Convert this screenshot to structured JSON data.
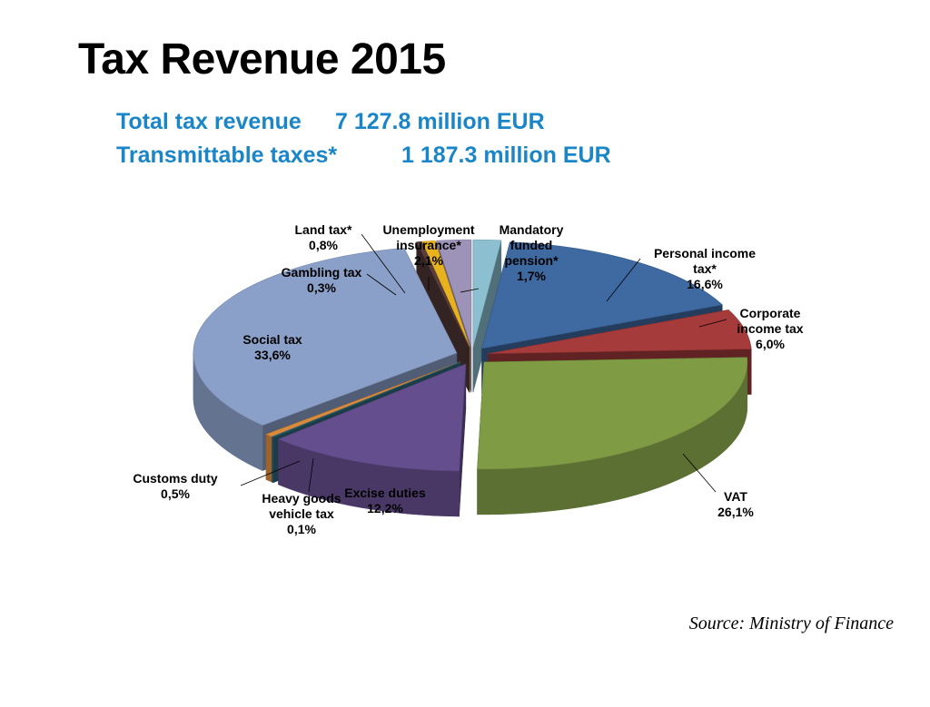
{
  "title": "Tax Revenue 2015",
  "subtitle": {
    "total_label": "Total tax revenue",
    "total_value": "7 127.8 million EUR",
    "transmittable_label": "Transmittable taxes*",
    "transmittable_value": "1 187.3 million EUR"
  },
  "source": "Source: Ministry of Finance",
  "chart_data": {
    "type": "pie",
    "title": "",
    "slices": [
      {
        "name": "Mandatory funded pension*",
        "value": 1.7,
        "label_lines": [
          "Mandatory",
          "funded",
          "pension*",
          "1,7%"
        ],
        "color": "#8cc0d0"
      },
      {
        "name": "Personal income tax*",
        "value": 16.6,
        "label_lines": [
          "Personal income",
          "tax*",
          "16,6%"
        ],
        "color": "#3e6aa1"
      },
      {
        "name": "Corporate income tax",
        "value": 6.0,
        "label_lines": [
          "Corporate",
          "income tax",
          "6,0%"
        ],
        "color": "#a63b3b"
      },
      {
        "name": "VAT",
        "value": 26.1,
        "label_lines": [
          "VAT",
          "26,1%"
        ],
        "color": "#7f9c45"
      },
      {
        "name": "Excise duties",
        "value": 12.2,
        "label_lines": [
          "Excise duties",
          "12,2%"
        ],
        "color": "#654e8d"
      },
      {
        "name": "Heavy goods vehicle tax",
        "value": 0.1,
        "label_lines": [
          "Heavy goods",
          "vehicle tax",
          "0,1%"
        ],
        "color": "#2f6a7c"
      },
      {
        "name": "Customs duty",
        "value": 0.5,
        "label_lines": [
          "Customs duty",
          "0,5%"
        ],
        "color": "#d98a3d"
      },
      {
        "name": "Social tax",
        "value": 33.6,
        "label_lines": [
          "Social tax",
          "33,6%"
        ],
        "color": "#8aa0c8"
      },
      {
        "name": "Gambling tax",
        "value": 0.3,
        "label_lines": [
          "Gambling tax",
          "0,3%"
        ],
        "color": "#5a3d3d"
      },
      {
        "name": "Land tax*",
        "value": 0.8,
        "label_lines": [
          "Land tax*",
          "0,8%"
        ],
        "color": "#e8b21e"
      },
      {
        "name": "Unemployment insurance*",
        "value": 2.1,
        "label_lines": [
          "Unemployment",
          "insurance*",
          "2,1%"
        ],
        "color": "#9d93b8"
      }
    ],
    "legend": "none",
    "unit": "%"
  }
}
